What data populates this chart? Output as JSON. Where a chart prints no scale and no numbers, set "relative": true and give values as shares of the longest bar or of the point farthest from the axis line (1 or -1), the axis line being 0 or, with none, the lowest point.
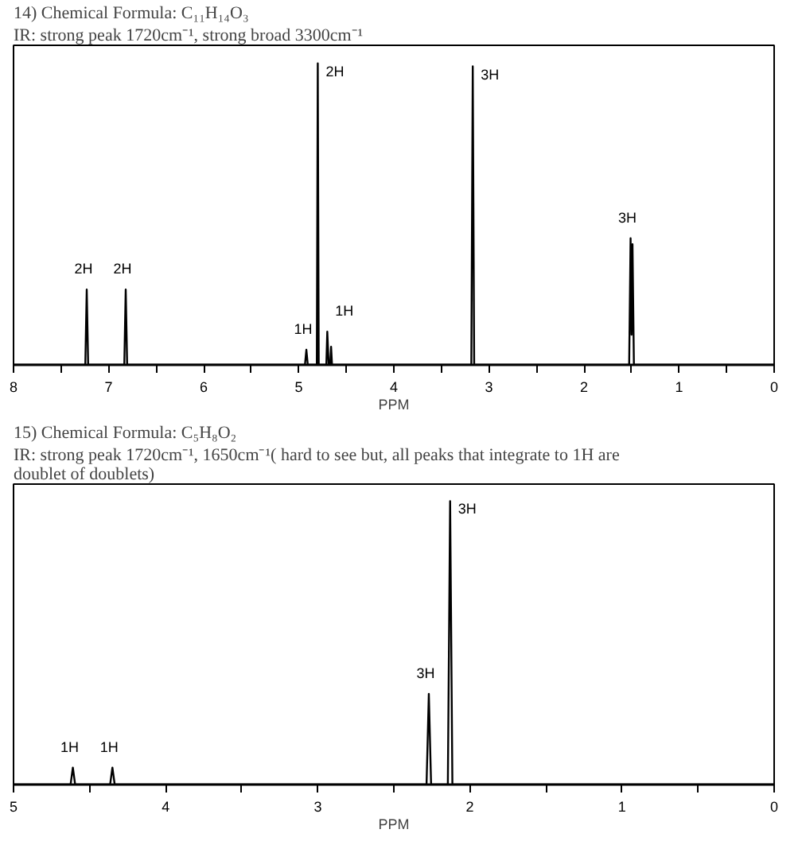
{
  "chart_data": [
    {
      "type": "line",
      "title": "14) Chemical Formula: C₁₁H₁₄O₃",
      "subtitle": "IR: strong peak 1720cm⁻¹, strong broad 3300cm⁻¹",
      "xlabel": "PPM",
      "relative": true,
      "grid": false,
      "tick_labels": "x",
      "xlim": [
        8,
        0
      ],
      "xticks": [
        8,
        {
          "value": 7.5,
          "label": null
        },
        7,
        {
          "value": 6.5,
          "label": null
        },
        6,
        {
          "value": 5.5,
          "label": null
        },
        5,
        {
          "value": 4.5,
          "label": null
        },
        4,
        {
          "value": 3.5,
          "label": null
        },
        3,
        {
          "value": 2.5,
          "label": null
        },
        2,
        {
          "value": 1.5,
          "label": null
        },
        1,
        {
          "value": 0.5,
          "label": null
        },
        0
      ],
      "series": [
        {
          "color": "#000000",
          "x": [
            8,
            7.245,
            7.23,
            7.215,
            6.835,
            6.82,
            6.805,
            4.935,
            4.92,
            4.905,
            4.81,
            4.8,
            4.79,
            4.71,
            4.7,
            4.685,
            4.67,
            4.66,
            4.65,
            3.185,
            3.17,
            3.155,
            1.525,
            1.51,
            1.5,
            1.49,
            1.475,
            0
          ],
          "values": [
            0,
            0,
            0.25,
            0,
            0,
            0.25,
            0,
            0,
            0.05,
            0,
            0,
            1,
            0,
            0,
            0.11,
            0,
            0,
            0.06,
            0,
            0,
            0.99,
            0,
            0,
            0.42,
            0.1,
            0.4,
            0,
            0
          ]
        }
      ],
      "annotations": [
        {
          "text": "2H",
          "x": 7.23,
          "y": 0.25
        },
        {
          "text": "2H",
          "x": 6.82,
          "y": 0.25
        },
        {
          "text": "1H",
          "x": 4.92,
          "y": 0.05
        },
        {
          "text": "1H",
          "x": 4.7,
          "y": 0.11
        },
        {
          "text": "2H",
          "x": 4.8,
          "y": 1
        },
        {
          "text": "3H",
          "x": 3.17,
          "y": 0.99
        },
        {
          "text": "3H",
          "x": 1.51,
          "y": 0.42
        }
      ]
    },
    {
      "type": "line",
      "title": "15) Chemical Formula: C₅H₈O₂",
      "subtitle": "IR: strong peak 1720cm⁻¹, 1650cm⁻¹( hard to see but, all peaks that integrate to 1H are doublet of doublets)",
      "xlabel": "PPM",
      "relative": true,
      "grid": false,
      "tick_labels": "x",
      "xlim": [
        5,
        0
      ],
      "xticks": [
        5,
        {
          "value": 4.5,
          "label": null
        },
        4,
        {
          "value": 3.5,
          "label": null
        },
        3,
        {
          "value": 2.5,
          "label": null
        },
        2,
        {
          "value": 1.5,
          "label": null
        },
        1,
        {
          "value": 0.5,
          "label": null
        },
        0
      ],
      "series": [
        {
          "color": "#000000",
          "x": [
            5,
            4.625,
            4.61,
            4.595,
            4.365,
            4.35,
            4.335,
            2.285,
            2.27,
            2.255,
            2.145,
            2.13,
            2.115,
            0
          ],
          "values": [
            0,
            0,
            0.06,
            0,
            0,
            0.06,
            0,
            0,
            0.32,
            0,
            0,
            1,
            0,
            0
          ]
        }
      ],
      "annotations": [
        {
          "text": "1H",
          "x": 4.61,
          "y": 0.06
        },
        {
          "text": "1H",
          "x": 4.35,
          "y": 0.06
        },
        {
          "text": "3H",
          "x": 2.27,
          "y": 0.32
        },
        {
          "text": "3H",
          "x": 2.13,
          "y": 1
        }
      ]
    }
  ]
}
